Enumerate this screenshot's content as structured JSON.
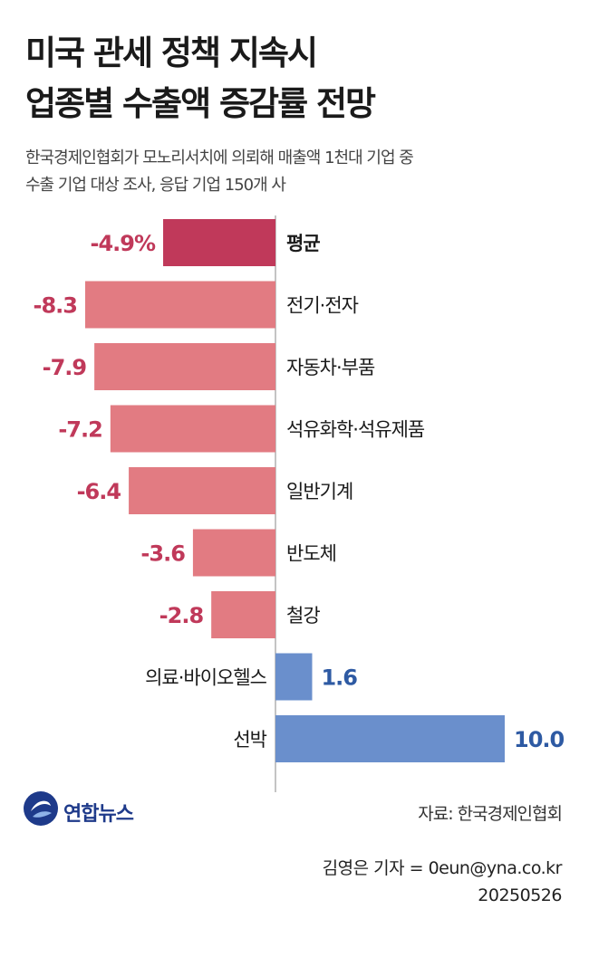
{
  "title": [
    "미국 관세 정책 지속시",
    "업종별 수출액 증감률 전망"
  ],
  "subtitle": [
    "한국경제인협회가 모노리서치에 의뢰해 매출액 1천대 기업 중",
    "수출 기업 대상 조사, 응답 기업 150개 사"
  ],
  "chart_data": {
    "type": "bar",
    "orientation": "horizontal",
    "categories": [
      "평균",
      "전기·전자",
      "자동차·부품",
      "석유화학·석유제품",
      "일반기계",
      "반도체",
      "철강",
      "의료·바이오헬스",
      "선박"
    ],
    "values": [
      -4.9,
      -8.3,
      -7.9,
      -7.2,
      -6.4,
      -3.6,
      -2.8,
      1.6,
      10.0
    ],
    "value_labels": [
      "-4.9%",
      "-8.3",
      "-7.9",
      "-7.2",
      "-6.4",
      "-3.6",
      "-2.8",
      "1.6",
      "10.0"
    ],
    "colors": {
      "average": "#c0395a",
      "negative": "#e27b82",
      "positive": "#6a8fcc",
      "negative_text": "#c0395a",
      "positive_text": "#2e5aa3"
    },
    "xlim": [
      -8.3,
      10.0
    ]
  },
  "source": "자료: 한국경제인협회",
  "credit": [
    "김영은 기자 = 0eun@yna.co.kr",
    "20250526"
  ],
  "logo": {
    "text": "연합뉴스",
    "icon": "yonhap-logo-icon"
  }
}
